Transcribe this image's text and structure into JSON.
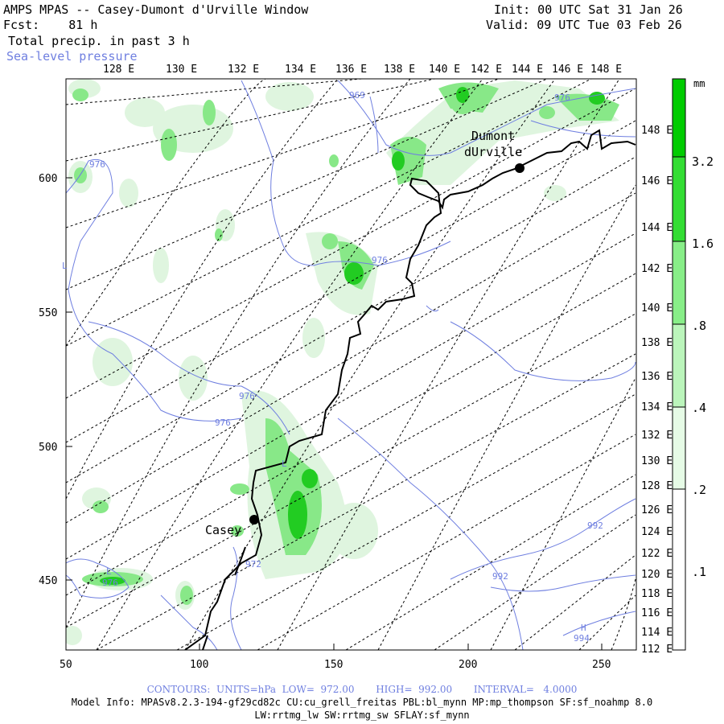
{
  "header": {
    "title": "AMPS MPAS -- Casey-Dumont d'Urville Window",
    "fcst": "Fcst:    81 h",
    "field": "Total precip. in past 3 h",
    "overlay": "Sea-level pressure",
    "init": "Init: 00 UTC Sat 31 Jan 26",
    "valid": "Valid: 09 UTC Tue 03 Feb 26"
  },
  "colors": {
    "contour": "#6f7fe0",
    "precip_light": "#dff5df",
    "precip_mid": "#88e888",
    "precip_dark": "#22cc22",
    "coast": "#000000",
    "grid": "#000000"
  },
  "top_labels": [
    "128 E",
    "130 E",
    "132 E",
    "134 E",
    "136 E",
    "138 E",
    "140 E",
    "142 E",
    "144 E",
    "146 E",
    "148 E"
  ],
  "right_labels": [
    "148 E",
    "146 E",
    "144 E",
    "142 E",
    "140 E",
    "138 E",
    "136 E",
    "134 E",
    "132 E",
    "130 E",
    "128 E",
    "126 E",
    "124 E",
    "122 E",
    "120 E",
    "118 E",
    "116 E",
    "114 E",
    "112 E"
  ],
  "x_ticks": [
    "50",
    "100",
    "150",
    "200",
    "250"
  ],
  "y_ticks": [
    "600",
    "550",
    "500",
    "450"
  ],
  "legend": {
    "unit": "mm",
    "levels": [
      "3.2",
      "1.6",
      ".8",
      ".4",
      ".2",
      ".1"
    ]
  },
  "stations": [
    {
      "name": "Dumont",
      "name2": "dUrville"
    },
    {
      "name": "Casey"
    }
  ],
  "contour_labels": [
    "976",
    "976",
    "976",
    "976",
    "976",
    "976",
    "992",
    "992",
    "994",
    "972",
    "969"
  ],
  "lows": [
    "L",
    "L",
    "L"
  ],
  "highs": [
    "H"
  ],
  "footer": {
    "contours": "CONTOURS:  UNITS=hPa  LOW=  972.00       HIGH=  992.00       INTERVAL=   4.0000",
    "model_info": "Model Info: MPASv8.2.3-194-gf29cd82c CU:cu_grell_freitas PBL:bl_mynn MP:mp_thompson SF:sf_noahmp 8.0",
    "model_info2": "LW:rrtmg_lw SW:rrtmg_sw SFLAY:sf_mynn"
  }
}
